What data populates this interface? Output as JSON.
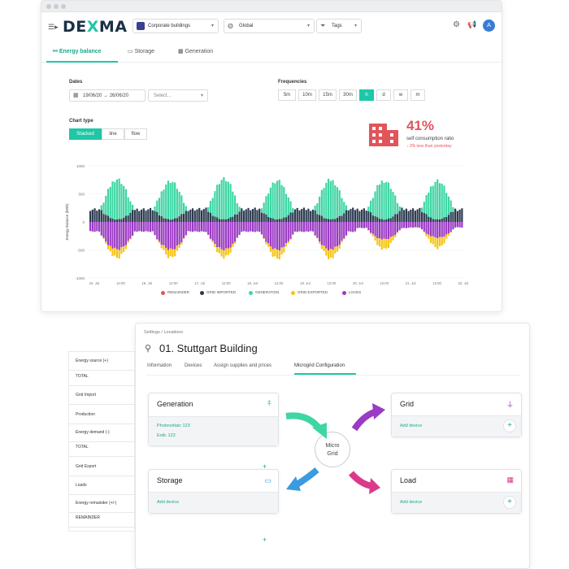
{
  "app": {
    "brand_prefix": "DE",
    "brand_x": "X",
    "brand_suffix": "MA"
  },
  "header": {
    "site_select": "Corporate buildings",
    "scope_select": "Global",
    "tags_select": "Tags",
    "avatar": "A"
  },
  "tabs": [
    {
      "label": "Energy balance",
      "active": true
    },
    {
      "label": "Storage",
      "active": false
    },
    {
      "label": "Generation",
      "active": false
    }
  ],
  "filters": {
    "dates_label": "Dates",
    "date_from": "19/06/20",
    "date_arrow": "→",
    "date_to": "26/06/20",
    "select_placeholder": "Select...",
    "frequencies_label": "Frequencies",
    "frequencies": [
      "5m",
      "10m",
      "15m",
      "30m",
      "h",
      "d",
      "w",
      "m"
    ],
    "active_frequency": "h"
  },
  "chart_type": {
    "label": "Chart type",
    "options": [
      "Stacked",
      "line",
      "flow"
    ],
    "active": "Stacked"
  },
  "self_consumption": {
    "value": "41%",
    "label": "self consumption ratio",
    "delta": "↓ 2% less than yesterday"
  },
  "chart_data": {
    "type": "bar",
    "stacked": true,
    "ylabel": "Energy Balance (kWh)",
    "ylim": [
      -1000,
      1000
    ],
    "yticks": [
      "1000",
      "500",
      "0",
      "-500",
      "-1000"
    ],
    "xticks": [
      "15. Jul",
      "12:00",
      "16. Jul",
      "12:00",
      "17. Jul",
      "12:00",
      "18. Jul",
      "12:00",
      "19. Jul",
      "12:00",
      "20. Jul",
      "12:00",
      "21. Jul",
      "12:00",
      "22. Jul"
    ],
    "days": 7,
    "hours_per_day": 24,
    "series": [
      {
        "name": "REMAINDER",
        "color": "#e2545a"
      },
      {
        "name": "GRID IMPORTED",
        "color": "#2b3a4f"
      },
      {
        "name": "GENERATION",
        "color": "#3ed6a4"
      },
      {
        "name": "GRID EXPORTED",
        "color": "#f5c518"
      },
      {
        "name": "LOADS",
        "color": "#9b3bc4"
      }
    ],
    "generation_peak_by_day": [
      760,
      720,
      760,
      720,
      740,
      730,
      730
    ],
    "loads_trough_by_day": [
      -520,
      -520,
      -520,
      -520,
      -520,
      -330,
      -300
    ],
    "grid_exported_trough_by_day": [
      -170,
      -160,
      -150,
      -170,
      -170,
      -200,
      -200
    ],
    "grid_imported_level": 260
  },
  "location": {
    "breadcrumb": "Settings  /  Locations",
    "title": "01. Stuttgart Building",
    "tabs": [
      "Information",
      "Devices",
      "Assign supplies and prices",
      "Microgrid Configuration"
    ],
    "active_tab": "Microgrid Configuration"
  },
  "side_list": [
    {
      "label": "Energy source (+)",
      "type": "header"
    },
    {
      "label": "TOTAL",
      "type": "item"
    },
    {
      "label": "Grid Import",
      "type": "item"
    },
    {
      "label": "Production",
      "type": "item"
    },
    {
      "label": "Energy demand (-)",
      "type": "header"
    },
    {
      "label": "TOTAL",
      "type": "item"
    },
    {
      "label": "Grid Export",
      "type": "item"
    },
    {
      "label": "Loads",
      "type": "item"
    },
    {
      "label": "Energy remainder (+/-)",
      "type": "header"
    },
    {
      "label": "REMAINDER",
      "type": "item"
    }
  ],
  "microgrid": {
    "center": [
      "Micro",
      "Grid"
    ],
    "generation": {
      "title": "Generation",
      "devices": [
        "Photovoltaic 123",
        "Eolic 123"
      ]
    },
    "grid": {
      "title": "Grid",
      "action": "Add device"
    },
    "storage": {
      "title": "Storage",
      "action": "Add device"
    },
    "load": {
      "title": "Load",
      "action": "Add device"
    }
  }
}
